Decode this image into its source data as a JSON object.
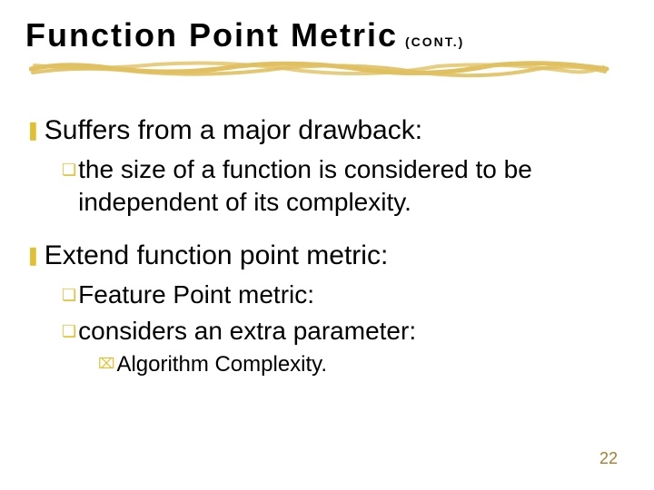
{
  "title": {
    "main": "Function Point Metric",
    "cont": "(CONT.)"
  },
  "colors": {
    "bullet": "#e0c030",
    "text": "#000000",
    "scribble": "#e0c060",
    "page_num": "#a08030"
  },
  "bullets": {
    "lvl1": "❚",
    "lvl2": "❏",
    "lvl3": "⌧"
  },
  "items": [
    {
      "level": 1,
      "text": "Suffers from a major drawback:"
    },
    {
      "level": 2,
      "text": "the size of a function is considered to be independent of its complexity."
    },
    {
      "level": "spacer"
    },
    {
      "level": 1,
      "text": "Extend function point metric:"
    },
    {
      "level": 2,
      "text": " Feature Point metric:"
    },
    {
      "level": 2,
      "text": "considers an extra parameter:"
    },
    {
      "level": 3,
      "text": "Algorithm Complexity."
    }
  ],
  "page_number": "22"
}
